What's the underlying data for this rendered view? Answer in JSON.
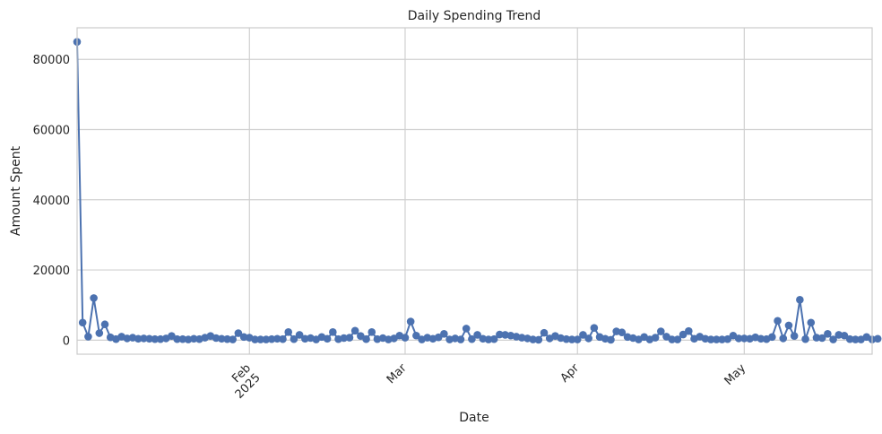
{
  "chart_data": {
    "type": "line",
    "title": "Daily Spending Trend",
    "xlabel": "Date",
    "ylabel": "Amount Spent",
    "grid": true,
    "marker": "circle",
    "color": "#4c72b0",
    "x_range": [
      "2025-01-01",
      "2025-05-24"
    ],
    "ylim": [
      -4000,
      89000
    ],
    "y_ticks": [
      0,
      20000,
      40000,
      60000,
      80000
    ],
    "y_tick_labels": [
      "0",
      "20000",
      "40000",
      "60000",
      "80000"
    ],
    "x_ticks": [
      {
        "date": "2025-02-01",
        "label": "Feb",
        "sublabel": "2025"
      },
      {
        "date": "2025-03-01",
        "label": "Mar",
        "sublabel": ""
      },
      {
        "date": "2025-04-01",
        "label": "Apr",
        "sublabel": ""
      },
      {
        "date": "2025-05-01",
        "label": "May",
        "sublabel": ""
      }
    ],
    "series": [
      {
        "start_date": "2025-01-01",
        "values": [
          85000,
          5000,
          1000,
          12000,
          2000,
          4500,
          800,
          300,
          1000,
          500,
          700,
          400,
          500,
          400,
          300,
          300,
          500,
          1200,
          300,
          300,
          200,
          400,
          300,
          700,
          1200,
          600,
          400,
          300,
          200,
          2000,
          900,
          700,
          200,
          200,
          200,
          300,
          400,
          300,
          2300,
          300,
          1500,
          400,
          600,
          200,
          900,
          400,
          2300,
          300,
          600,
          700,
          2700,
          1200,
          300,
          2300,
          300,
          600,
          200,
          500,
          1300,
          700,
          5300,
          1300,
          200,
          700,
          400,
          800,
          1800,
          200,
          500,
          200,
          3300,
          300,
          1500,
          400,
          200,
          300,
          1600,
          1500,
          1300,
          1000,
          700,
          500,
          200,
          100,
          2100,
          500,
          1200,
          600,
          300,
          200,
          200,
          1500,
          500,
          3500,
          900,
          400,
          100,
          2500,
          2200,
          900,
          600,
          200,
          900,
          200,
          700,
          2500,
          1000,
          200,
          200,
          1600,
          2600,
          400,
          1000,
          400,
          200,
          200,
          200,
          300,
          1300,
          500,
          500,
          400,
          800,
          400,
          300,
          900,
          5500,
          500,
          4200,
          1200,
          11500,
          300,
          5000,
          700,
          600,
          1800,
          200,
          1500,
          1300,
          300,
          200,
          200,
          900,
          200,
          400
        ]
      }
    ]
  }
}
